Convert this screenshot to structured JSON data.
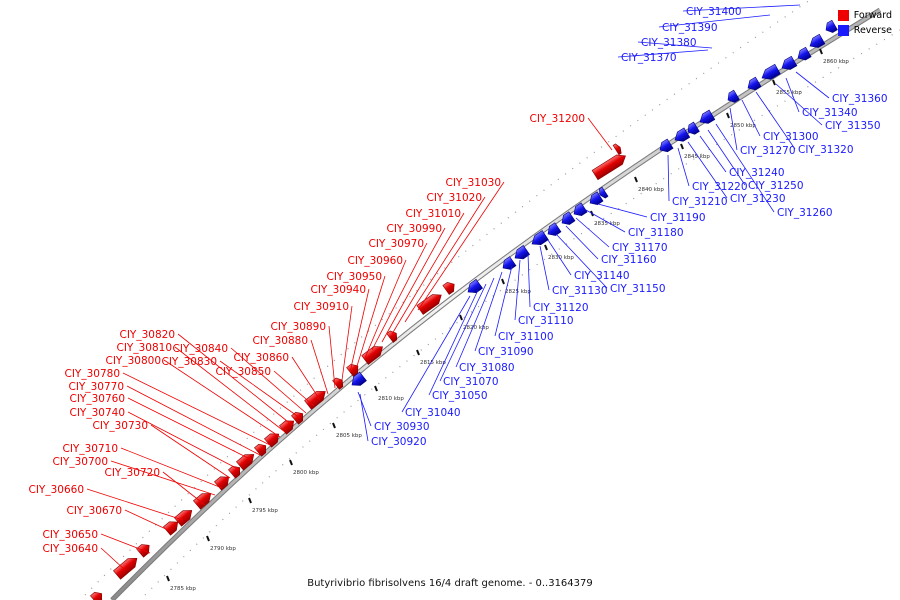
{
  "title": "Butyrivibrio fibrisolvens 16/4 draft genome. - 0..3164379",
  "legend": {
    "forward": {
      "label": "Forward",
      "color": "#ee0000"
    },
    "reverse": {
      "label": "Reverse",
      "color": "#1a1aff"
    }
  },
  "ticks": [
    "2785 kbp",
    "2790 kbp",
    "2795 kbp",
    "2800 kbp",
    "2805 kbp",
    "2810 kbp",
    "2815 kbp",
    "2820 kbp",
    "2825 kbp",
    "2830 kbp",
    "2835 kbp",
    "2840 kbp",
    "2845 kbp",
    "2850 kbp",
    "2855 kbp",
    "2860 kbp"
  ],
  "forward_labels": [
    "CIY_30640",
    "CIY_30650",
    "CIY_30670",
    "CIY_30660",
    "CIY_30720",
    "CIY_30700",
    "CIY_30710",
    "CIY_30730",
    "CIY_30740",
    "CIY_30760",
    "CIY_30770",
    "CIY_30780",
    "CIY_30800",
    "CIY_30810",
    "CIY_30820",
    "CIY_30830",
    "CIY_30840",
    "CIY_30850",
    "CIY_30860",
    "CIY_30880",
    "CIY_30890",
    "CIY_30910",
    "CIY_30940",
    "CIY_30950",
    "CIY_30960",
    "CIY_30970",
    "CIY_30990",
    "CIY_31010",
    "CIY_31020",
    "CIY_31030",
    "CIY_31200"
  ],
  "reverse_labels": [
    "CIY_30920",
    "CIY_30930",
    "CIY_31040",
    "CIY_31050",
    "CIY_31070",
    "CIY_31080",
    "CIY_31090",
    "CIY_31100",
    "CIY_31110",
    "CIY_31120",
    "CIY_31130",
    "CIY_31140",
    "CIY_31150",
    "CIY_31160",
    "CIY_31170",
    "CIY_31180",
    "CIY_31190",
    "CIY_31210",
    "CIY_31220",
    "CIY_31230",
    "CIY_31240",
    "CIY_31250",
    "CIY_31260",
    "CIY_31270",
    "CIY_31300",
    "CIY_31320",
    "CIY_31350",
    "CIY_31340",
    "CIY_31360",
    "CIY_31370",
    "CIY_31380",
    "CIY_31390",
    "CIY_31400"
  ]
}
